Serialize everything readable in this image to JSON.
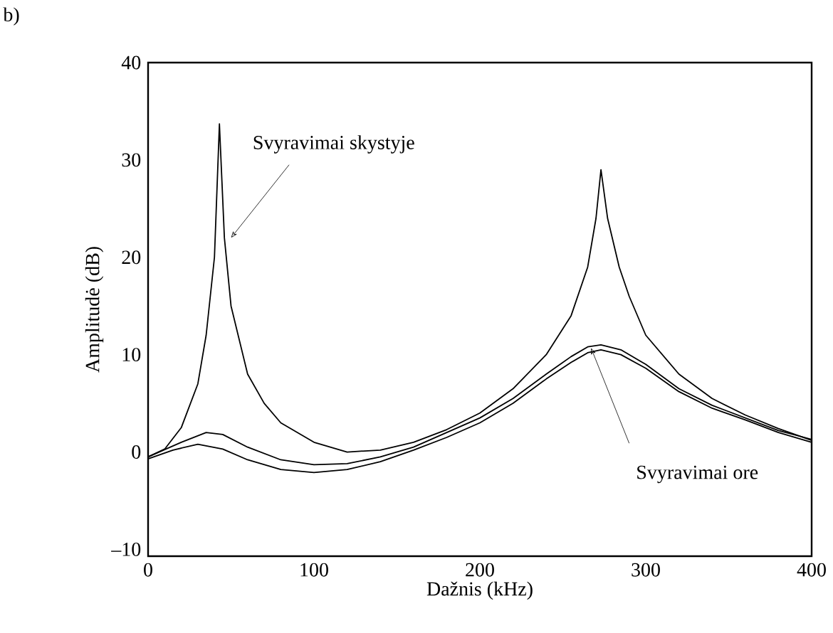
{
  "chart_data": {
    "type": "line",
    "xlabel": "Dažnis (kHz)",
    "ylabel": "Amplitudė (dB)",
    "xlim": [
      0,
      400
    ],
    "ylim": [
      -10.7,
      40
    ],
    "xticks": [
      0,
      100,
      200,
      300,
      400
    ],
    "yticks": [
      {
        "value": -10,
        "label": "–10"
      },
      0,
      10,
      20,
      30,
      40
    ],
    "series": [
      {
        "color": "#000000",
        "x": [
          0,
          10,
          20,
          30,
          35,
          40,
          43,
          46,
          50,
          60,
          70,
          80,
          100,
          120,
          140,
          160,
          180,
          200,
          220,
          240,
          255,
          265,
          270,
          273,
          277,
          284,
          290,
          300,
          320,
          340,
          360,
          380,
          400
        ],
        "values": [
          -0.5,
          0.3,
          2.5,
          7,
          12,
          20,
          33.7,
          22,
          15,
          8,
          5,
          3,
          1,
          0,
          0.2,
          1,
          2.3,
          4,
          6.5,
          10,
          14,
          19,
          24,
          29,
          24,
          19,
          16,
          12,
          8,
          5.5,
          3.8,
          2.4,
          1.2
        ]
      },
      {
        "color": "#000000",
        "x": [
          0,
          20,
          35,
          45,
          60,
          80,
          100,
          120,
          140,
          160,
          180,
          200,
          220,
          240,
          255,
          265,
          273,
          285,
          300,
          320,
          340,
          360,
          380,
          400
        ],
        "values": [
          -0.5,
          1,
          2,
          1.8,
          0.5,
          -0.8,
          -1.3,
          -1.2,
          -0.5,
          0.5,
          2,
          3.5,
          5.5,
          8,
          9.8,
          10.8,
          11,
          10.5,
          9,
          6.5,
          4.8,
          3.5,
          2.2,
          1.3
        ]
      },
      {
        "color": "#000000",
        "x": [
          0,
          15,
          30,
          45,
          60,
          80,
          100,
          120,
          140,
          160,
          180,
          200,
          220,
          240,
          255,
          265,
          273,
          285,
          300,
          320,
          340,
          360,
          380,
          400
        ],
        "values": [
          -0.7,
          0.2,
          0.8,
          0.3,
          -0.8,
          -1.8,
          -2.1,
          -1.8,
          -1,
          0.2,
          1.5,
          3,
          5,
          7.5,
          9.2,
          10.2,
          10.5,
          10,
          8.6,
          6.2,
          4.5,
          3.3,
          2,
          1
        ]
      }
    ],
    "annotations": [
      "b)",
      {
        "text": "Svyravimai skystyje",
        "x": 50,
        "y": 22
      },
      {
        "text": "Svyravimai ore",
        "x": 267,
        "y": 10.7
      }
    ]
  }
}
